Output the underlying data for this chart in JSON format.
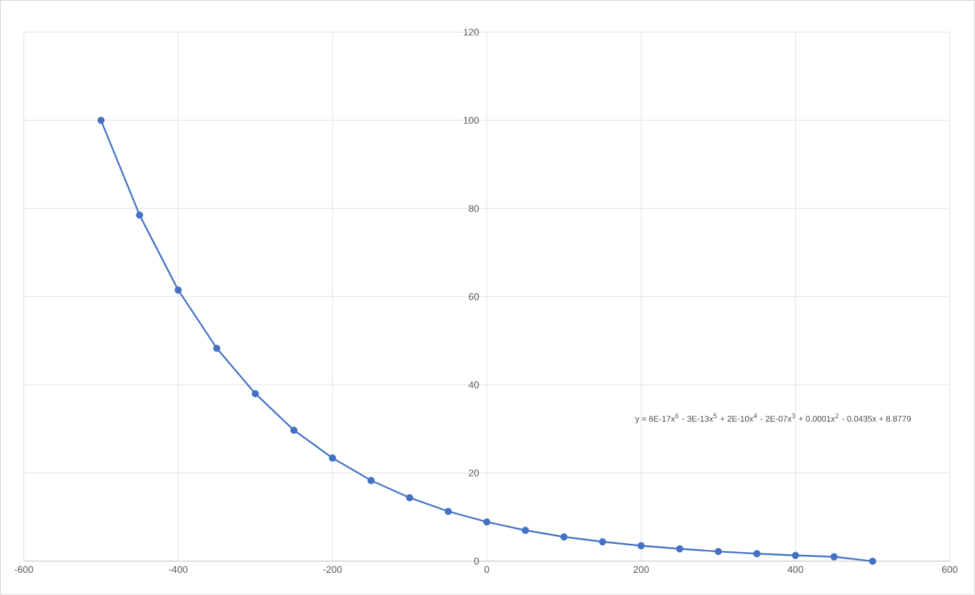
{
  "chart_data": {
    "type": "line",
    "x": [
      -500,
      -450,
      -400,
      -350,
      -300,
      -250,
      -200,
      -150,
      -100,
      -50,
      0,
      50,
      100,
      150,
      200,
      250,
      300,
      350,
      400,
      450,
      500
    ],
    "series": [
      {
        "color": "#4472c4",
        "values": [
          100,
          78.5,
          61.5,
          48.3,
          38,
          29.7,
          23.4,
          18.3,
          14.4,
          11.3,
          8.9,
          7.0,
          5.5,
          4.4,
          3.5,
          2.8,
          2.2,
          1.7,
          1.3,
          1.0,
          0
        ]
      }
    ],
    "xlim": [
      -600,
      600
    ],
    "xticks": [
      -600,
      -400,
      -200,
      0,
      200,
      400,
      600
    ],
    "ylim": [
      0,
      120
    ],
    "yticks": [
      0,
      20,
      40,
      60,
      80,
      100,
      120
    ],
    "grid": true,
    "marker": "circle",
    "line_style": "solid",
    "annotations": [
      "y = 6E-17x$^{6}$ - 3E-13x$^{5}$ + 2E-10x$^{4}$ - 2E-07x$^{3}$ + 0.0001x$^{2}$ - 0.0435x + 8.8779"
    ]
  }
}
